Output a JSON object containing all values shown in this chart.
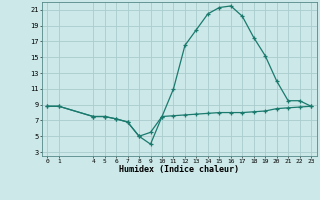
{
  "x_labels": [
    0,
    1,
    4,
    5,
    6,
    7,
    8,
    9,
    10,
    11,
    12,
    13,
    14,
    15,
    16,
    17,
    18,
    19,
    20,
    21,
    22,
    23
  ],
  "line1_x": [
    0,
    1,
    4,
    5,
    6,
    7,
    8,
    9,
    10,
    11,
    12,
    13,
    14,
    15,
    16,
    17,
    18,
    19,
    20,
    21,
    22,
    23
  ],
  "line1_y": [
    8.8,
    8.8,
    7.5,
    7.5,
    7.2,
    6.8,
    5.0,
    4.0,
    7.5,
    7.6,
    7.7,
    7.8,
    7.9,
    8.0,
    8.0,
    8.0,
    8.1,
    8.2,
    8.5,
    8.6,
    8.7,
    8.8
  ],
  "line2_x": [
    0,
    1,
    4,
    5,
    6,
    7,
    8,
    9,
    10,
    11,
    12,
    13,
    14,
    15,
    16,
    17,
    18,
    19,
    20,
    21,
    22,
    23
  ],
  "line2_y": [
    8.8,
    8.8,
    7.5,
    7.5,
    7.2,
    6.8,
    5.0,
    5.5,
    7.5,
    11.0,
    16.5,
    18.5,
    20.5,
    21.3,
    21.5,
    20.2,
    17.5,
    15.2,
    12.0,
    9.5,
    9.5,
    8.8
  ],
  "line_color": "#1a7a6e",
  "bg_color": "#cce8e8",
  "grid_color": "#aacccc",
  "xlabel": "Humidex (Indice chaleur)",
  "yticks": [
    3,
    5,
    7,
    9,
    11,
    13,
    15,
    17,
    19,
    21
  ],
  "ylim": [
    2.5,
    22.0
  ],
  "xlim": [
    -0.5,
    23.5
  ],
  "figsize": [
    3.2,
    2.0
  ],
  "dpi": 100
}
